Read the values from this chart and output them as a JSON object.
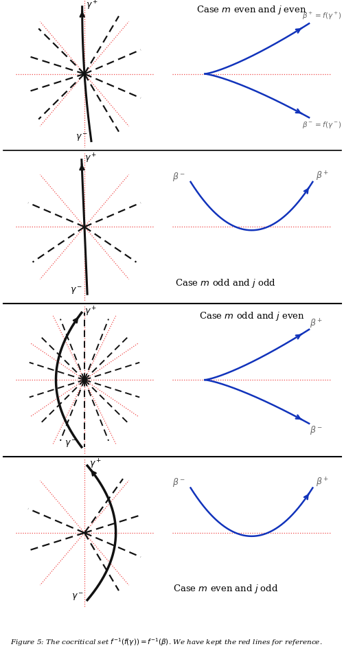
{
  "fig_width": 5.02,
  "fig_height": 9.48,
  "bg_color": "#ffffff",
  "panel_titles": [
    "Case $m$ even and $j$ even",
    "Case $m$ odd and $j$ odd",
    "Case $m$ odd and $j$ even",
    "Case $m$ even and $j$ odd"
  ],
  "caption": "Figure 5: The cocritical set $f^{-1}(f(\\gamma)) = f^{-1}(\\beta)$. We have kept the red lines for reference.",
  "red_dot_color": "#ee3333",
  "black_curve_color": "#111111",
  "blue_curve_color": "#1133bb",
  "dashed_color": "#111111",
  "label_color": "#666666"
}
